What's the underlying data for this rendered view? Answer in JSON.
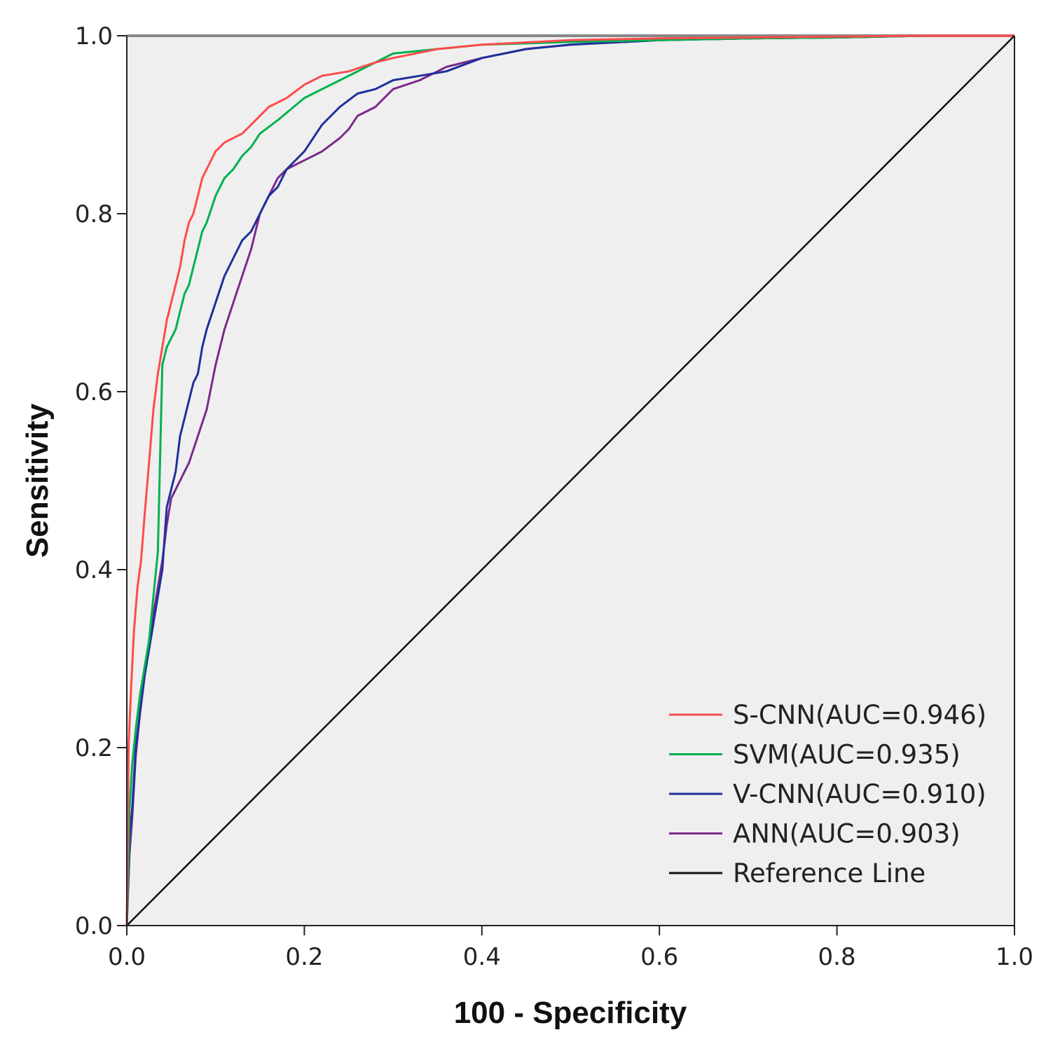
{
  "chart_data": {
    "type": "line",
    "title": "",
    "xlabel": "100 - Specificity",
    "ylabel": "Sensitivity",
    "xlim": [
      0,
      1
    ],
    "ylim": [
      0,
      1
    ],
    "x_ticks": [
      "0.0",
      "0.2",
      "0.4",
      "0.6",
      "0.8",
      "1.0"
    ],
    "y_ticks": [
      "0.0",
      "0.2",
      "0.4",
      "0.6",
      "0.8",
      "1.0"
    ],
    "grid": false,
    "legend_position": "bottom-right",
    "background": "#efefef",
    "series": [
      {
        "name": "S-CNN(AUC=0.946)",
        "color": "#ff4b4b",
        "x": [
          0,
          0.002,
          0.005,
          0.008,
          0.012,
          0.016,
          0.02,
          0.025,
          0.03,
          0.035,
          0.04,
          0.045,
          0.05,
          0.055,
          0.06,
          0.065,
          0.07,
          0.075,
          0.08,
          0.085,
          0.09,
          0.1,
          0.11,
          0.12,
          0.13,
          0.14,
          0.15,
          0.16,
          0.18,
          0.2,
          0.22,
          0.25,
          0.28,
          0.3,
          0.35,
          0.4,
          0.5,
          0.6,
          0.7,
          0.8,
          0.9,
          1.0
        ],
        "y": [
          0,
          0.2,
          0.27,
          0.33,
          0.38,
          0.41,
          0.46,
          0.52,
          0.58,
          0.62,
          0.65,
          0.68,
          0.7,
          0.72,
          0.74,
          0.77,
          0.79,
          0.8,
          0.82,
          0.84,
          0.85,
          0.87,
          0.88,
          0.885,
          0.89,
          0.9,
          0.91,
          0.92,
          0.93,
          0.945,
          0.955,
          0.96,
          0.97,
          0.975,
          0.985,
          0.99,
          0.995,
          0.997,
          0.998,
          0.999,
          1.0,
          1.0
        ]
      },
      {
        "name": "SVM(AUC=0.935)",
        "color": "#00b050",
        "x": [
          0,
          0.003,
          0.006,
          0.01,
          0.015,
          0.02,
          0.025,
          0.03,
          0.035,
          0.04,
          0.045,
          0.05,
          0.055,
          0.06,
          0.065,
          0.07,
          0.075,
          0.08,
          0.085,
          0.09,
          0.1,
          0.11,
          0.12,
          0.13,
          0.14,
          0.15,
          0.17,
          0.2,
          0.22,
          0.25,
          0.28,
          0.3,
          0.35,
          0.4,
          0.5,
          0.6,
          0.7,
          0.8,
          0.9,
          1.0
        ],
        "y": [
          0,
          0.13,
          0.18,
          0.22,
          0.26,
          0.29,
          0.32,
          0.37,
          0.42,
          0.63,
          0.65,
          0.66,
          0.67,
          0.69,
          0.71,
          0.72,
          0.74,
          0.76,
          0.78,
          0.79,
          0.82,
          0.84,
          0.85,
          0.865,
          0.875,
          0.89,
          0.905,
          0.93,
          0.94,
          0.955,
          0.97,
          0.98,
          0.985,
          0.99,
          0.993,
          0.995,
          0.997,
          0.998,
          1.0,
          1.0
        ]
      },
      {
        "name": "V-CNN(AUC=0.910)",
        "color": "#1f2f9a",
        "x": [
          0,
          0.003,
          0.006,
          0.01,
          0.015,
          0.02,
          0.025,
          0.03,
          0.035,
          0.04,
          0.045,
          0.05,
          0.055,
          0.06,
          0.065,
          0.07,
          0.075,
          0.08,
          0.085,
          0.09,
          0.1,
          0.11,
          0.12,
          0.13,
          0.14,
          0.15,
          0.16,
          0.17,
          0.18,
          0.2,
          0.22,
          0.24,
          0.26,
          0.28,
          0.3,
          0.33,
          0.36,
          0.4,
          0.45,
          0.5,
          0.6,
          0.7,
          0.8,
          0.9,
          1.0
        ],
        "y": [
          0,
          0.1,
          0.13,
          0.2,
          0.24,
          0.28,
          0.31,
          0.34,
          0.37,
          0.4,
          0.47,
          0.49,
          0.51,
          0.55,
          0.57,
          0.59,
          0.61,
          0.62,
          0.65,
          0.67,
          0.7,
          0.73,
          0.75,
          0.77,
          0.78,
          0.8,
          0.82,
          0.83,
          0.85,
          0.87,
          0.9,
          0.92,
          0.935,
          0.94,
          0.95,
          0.955,
          0.96,
          0.975,
          0.985,
          0.99,
          0.995,
          0.997,
          0.998,
          1.0,
          1.0
        ]
      },
      {
        "name": "ANN(AUC=0.903)",
        "color": "#7b2a8c",
        "x": [
          0,
          0.003,
          0.006,
          0.01,
          0.015,
          0.02,
          0.025,
          0.03,
          0.035,
          0.04,
          0.045,
          0.05,
          0.06,
          0.07,
          0.08,
          0.09,
          0.1,
          0.11,
          0.12,
          0.13,
          0.14,
          0.15,
          0.16,
          0.17,
          0.18,
          0.2,
          0.22,
          0.24,
          0.25,
          0.26,
          0.27,
          0.28,
          0.3,
          0.33,
          0.36,
          0.4,
          0.45,
          0.5,
          0.6,
          0.7,
          0.8,
          0.9,
          1.0
        ],
        "y": [
          0,
          0.08,
          0.12,
          0.19,
          0.24,
          0.28,
          0.32,
          0.35,
          0.38,
          0.41,
          0.45,
          0.48,
          0.5,
          0.52,
          0.55,
          0.58,
          0.63,
          0.67,
          0.7,
          0.73,
          0.76,
          0.8,
          0.82,
          0.84,
          0.85,
          0.86,
          0.87,
          0.885,
          0.895,
          0.91,
          0.915,
          0.92,
          0.94,
          0.95,
          0.965,
          0.975,
          0.985,
          0.99,
          0.995,
          0.997,
          0.998,
          1.0,
          1.0
        ]
      },
      {
        "name": "Reference Line",
        "color": "#111111",
        "x": [
          0,
          1
        ],
        "y": [
          0,
          1
        ]
      }
    ]
  }
}
